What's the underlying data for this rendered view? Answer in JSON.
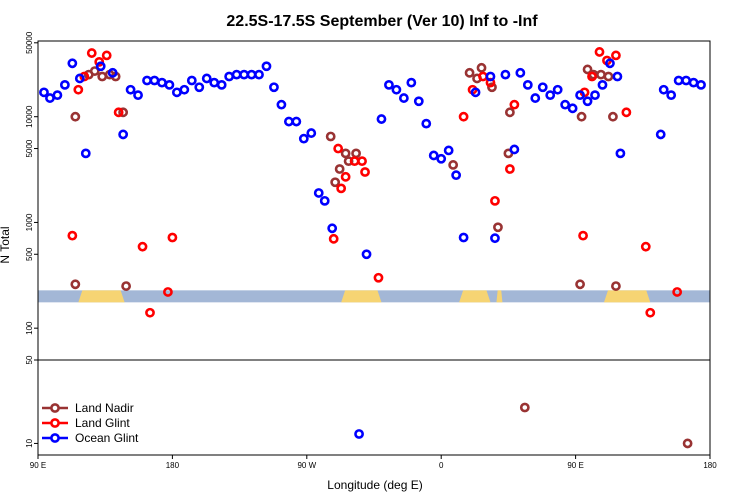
{
  "chart_data": {
    "type": "scatter",
    "title": "22.5S-17.5S September (Ver 10)   Inf to -Inf",
    "xlabel": "Longitude (deg E)",
    "ylabel": "N Total",
    "x_ticks": [
      {
        "value": 90,
        "label": "90 E"
      },
      {
        "value": 180,
        "label": "180"
      },
      {
        "value": 270,
        "label": "90 W"
      },
      {
        "value": 360,
        "label": "0"
      },
      {
        "value": 450,
        "label": "90 E"
      },
      {
        "value": 540,
        "label": "180"
      }
    ],
    "xlim": [
      90,
      540
    ],
    "upper_panel": {
      "scale": "log",
      "ylim": [
        50,
        52000
      ],
      "y_ticks": [
        {
          "value": 50000,
          "label": "50000"
        },
        {
          "value": 10000,
          "label": "10000"
        },
        {
          "value": 5000,
          "label": "5000"
        },
        {
          "value": 1000,
          "label": "1000"
        },
        {
          "value": 500,
          "label": "500"
        },
        {
          "value": 100,
          "label": "100"
        },
        {
          "value": 50,
          "label": "50"
        }
      ]
    },
    "lower_panel": {
      "scale": "log",
      "ylim": [
        8,
        50
      ],
      "y_ticks": [
        {
          "value": 50,
          "label": "50"
        },
        {
          "value": 10,
          "label": "10"
        }
      ]
    },
    "land_mask": {
      "y_value": 200,
      "ocean_color": "#a3b7d6",
      "land_color": "#f6d473",
      "land_ranges": [
        [
          117,
          148
        ],
        [
          293,
          320
        ],
        [
          372,
          393
        ],
        [
          397,
          401
        ],
        [
          469,
          500
        ]
      ]
    },
    "legend": {
      "position": "bottom-left"
    },
    "series": [
      {
        "name": "Land Nadir",
        "color": "#993333",
        "points": [
          [
            115,
            10000
          ],
          [
            115,
            260
          ],
          [
            124,
            25000
          ],
          [
            128,
            27000
          ],
          [
            133,
            24000
          ],
          [
            138,
            25000
          ],
          [
            142,
            24000
          ],
          [
            147,
            11000
          ],
          [
            149,
            250
          ],
          [
            286,
            6500
          ],
          [
            289,
            2400
          ],
          [
            292,
            3200
          ],
          [
            296,
            4500
          ],
          [
            298,
            3800
          ],
          [
            303,
            4500
          ],
          [
            368,
            3500
          ],
          [
            379,
            26000
          ],
          [
            384,
            23000
          ],
          [
            387,
            29000
          ],
          [
            394,
            19000
          ],
          [
            398,
            900
          ],
          [
            405,
            4500
          ],
          [
            406,
            11000
          ],
          [
            416,
            20
          ],
          [
            453,
            260
          ],
          [
            454,
            10000
          ],
          [
            458,
            28000
          ],
          [
            462,
            25000
          ],
          [
            467,
            25000
          ],
          [
            472,
            24000
          ],
          [
            475,
            10000
          ],
          [
            477,
            250
          ],
          [
            525,
            10
          ]
        ]
      },
      {
        "name": "Land Glint",
        "color": "#ff0000",
        "points": [
          [
            113,
            750
          ],
          [
            117,
            18000
          ],
          [
            121,
            24000
          ],
          [
            126,
            40000
          ],
          [
            131,
            33000
          ],
          [
            136,
            38000
          ],
          [
            144,
            11000
          ],
          [
            160,
            590
          ],
          [
            165,
            140
          ],
          [
            177,
            220
          ],
          [
            180,
            720
          ],
          [
            288,
            700
          ],
          [
            291,
            5000
          ],
          [
            293,
            2100
          ],
          [
            296,
            2700
          ],
          [
            302,
            3800
          ],
          [
            307,
            3800
          ],
          [
            309,
            3000
          ],
          [
            318,
            300
          ],
          [
            375,
            10000
          ],
          [
            381,
            18000
          ],
          [
            388,
            24000
          ],
          [
            393,
            21000
          ],
          [
            396,
            1600
          ],
          [
            406,
            3200
          ],
          [
            409,
            13000
          ],
          [
            455,
            750
          ],
          [
            456,
            17000
          ],
          [
            461,
            24000
          ],
          [
            466,
            41000
          ],
          [
            471,
            34000
          ],
          [
            477,
            38000
          ],
          [
            484,
            11000
          ],
          [
            497,
            590
          ],
          [
            500,
            140
          ],
          [
            518,
            220
          ]
        ]
      },
      {
        "name": "Ocean Glint",
        "color": "#0000ff",
        "points": [
          [
            94,
            17000
          ],
          [
            98,
            15000
          ],
          [
            103,
            16000
          ],
          [
            108,
            20000
          ],
          [
            113,
            32000
          ],
          [
            118,
            23000
          ],
          [
            122,
            4500
          ],
          [
            132,
            30000
          ],
          [
            140,
            26000
          ],
          [
            147,
            6800
          ],
          [
            152,
            18000
          ],
          [
            157,
            16000
          ],
          [
            163,
            22000
          ],
          [
            168,
            22000
          ],
          [
            173,
            21000
          ],
          [
            178,
            20000
          ],
          [
            183,
            17000
          ],
          [
            188,
            18000
          ],
          [
            193,
            22000
          ],
          [
            198,
            19000
          ],
          [
            203,
            23000
          ],
          [
            208,
            21000
          ],
          [
            213,
            20000
          ],
          [
            218,
            24000
          ],
          [
            223,
            25000
          ],
          [
            228,
            25000
          ],
          [
            233,
            25000
          ],
          [
            238,
            25000
          ],
          [
            243,
            30000
          ],
          [
            248,
            19000
          ],
          [
            253,
            13000
          ],
          [
            258,
            9000
          ],
          [
            263,
            9000
          ],
          [
            268,
            6200
          ],
          [
            273,
            7000
          ],
          [
            278,
            1900
          ],
          [
            282,
            1600
          ],
          [
            287,
            880
          ],
          [
            305,
            12
          ],
          [
            310,
            500
          ],
          [
            320,
            9500
          ],
          [
            325,
            20000
          ],
          [
            330,
            18000
          ],
          [
            335,
            15000
          ],
          [
            340,
            21000
          ],
          [
            345,
            14000
          ],
          [
            350,
            8600
          ],
          [
            355,
            4300
          ],
          [
            360,
            4000
          ],
          [
            365,
            4800
          ],
          [
            370,
            2800
          ],
          [
            375,
            720
          ],
          [
            383,
            17000
          ],
          [
            393,
            24000
          ],
          [
            396,
            710
          ],
          [
            403,
            25000
          ],
          [
            409,
            4900
          ],
          [
            413,
            26000
          ],
          [
            418,
            20000
          ],
          [
            423,
            15000
          ],
          [
            428,
            19000
          ],
          [
            433,
            16000
          ],
          [
            438,
            18000
          ],
          [
            443,
            13000
          ],
          [
            448,
            12000
          ],
          [
            453,
            16000
          ],
          [
            458,
            14000
          ],
          [
            463,
            16000
          ],
          [
            468,
            20000
          ],
          [
            473,
            32000
          ],
          [
            478,
            24000
          ],
          [
            480,
            4500
          ],
          [
            507,
            6800
          ],
          [
            509,
            18000
          ],
          [
            514,
            16000
          ],
          [
            519,
            22000
          ],
          [
            524,
            22000
          ],
          [
            529,
            21000
          ],
          [
            534,
            20000
          ]
        ]
      }
    ]
  }
}
